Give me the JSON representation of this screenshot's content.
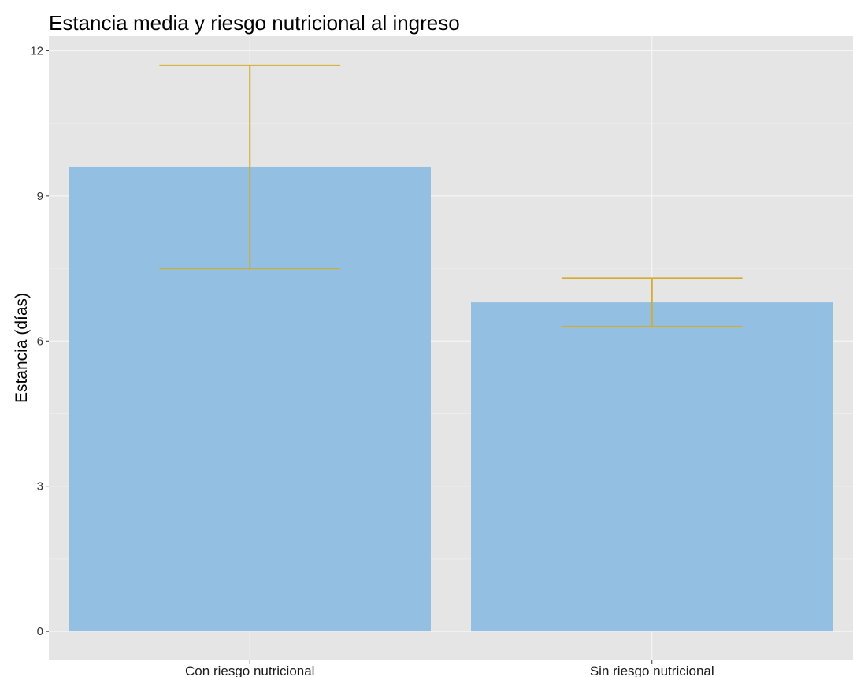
{
  "chart_data": {
    "type": "bar",
    "title": "Estancia media y riesgo nutricional al ingreso",
    "xlabel": "",
    "ylabel": "Estancia (días)",
    "categories": [
      "Con riesgo nutricional",
      "Sin riesgo nutricional"
    ],
    "values": [
      9.6,
      6.8
    ],
    "error_low": [
      7.5,
      6.3
    ],
    "error_high": [
      11.7,
      7.3
    ],
    "ylim": [
      -0.6,
      12.3
    ],
    "yticks": [
      "0",
      "3",
      "6",
      "9",
      "12"
    ],
    "grid": true,
    "legend": "none"
  },
  "colors": {
    "bar": "#93bfe2",
    "errorbar": "#d4ac2c",
    "panel": "#e5e5e5",
    "grid_major": "#f5f5f5",
    "grid_minor": "#ededed"
  }
}
